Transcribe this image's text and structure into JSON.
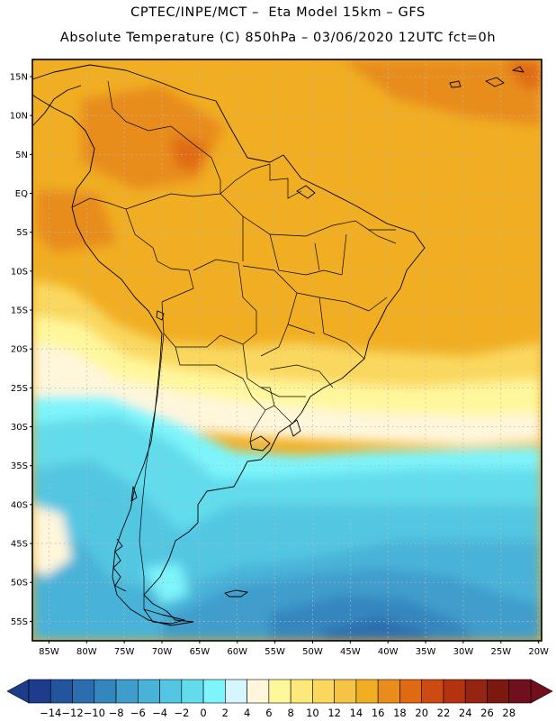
{
  "header": {
    "title_line1": "CPTEC/INPE/MCT –  Eta Model 15km – GFS",
    "title_line2": "Absolute Temperature (C) 850hPa – 03/06/2020 12UTC fct=0h"
  },
  "map": {
    "lat_labels": [
      "15N",
      "10N",
      "5N",
      "EQ",
      "5S",
      "10S",
      "15S",
      "20S",
      "25S",
      "30S",
      "35S",
      "40S",
      "45S",
      "50S",
      "55S"
    ],
    "lon_labels": [
      "85W",
      "80W",
      "75W",
      "70W",
      "65W",
      "60W",
      "55W",
      "50W",
      "45W",
      "40W",
      "35W",
      "30W",
      "25W",
      "20W"
    ],
    "lat_values": [
      15,
      10,
      5,
      0,
      -5,
      -10,
      -15,
      -20,
      -25,
      -30,
      -35,
      -40,
      -45,
      -50,
      -55
    ],
    "lon_values": [
      -85,
      -80,
      -75,
      -70,
      -65,
      -60,
      -55,
      -50,
      -45,
      -40,
      -35,
      -30,
      -25,
      -20
    ]
  },
  "colorbar": {
    "labels": [
      "-14",
      "-12",
      "-10",
      "-8",
      "-6",
      "-4",
      "-2",
      "0",
      "2",
      "4",
      "6",
      "8",
      "10",
      "12",
      "14",
      "16",
      "18",
      "20",
      "22",
      "24",
      "26",
      "28"
    ],
    "colors": [
      "#1e3c8c",
      "#23559f",
      "#2a6eb0",
      "#3486bf",
      "#3f9dcc",
      "#49b2d8",
      "#52c6e2",
      "#62dcec",
      "#7ef4fb",
      "#d6f6ff",
      "#fff6dc",
      "#fff79c",
      "#fde87a",
      "#fad85e",
      "#f5c446",
      "#f1ae22",
      "#e88c1c",
      "#e06a12",
      "#cd4a12",
      "#b3320f",
      "#952410",
      "#7b1810",
      "#70101d"
    ]
  }
}
